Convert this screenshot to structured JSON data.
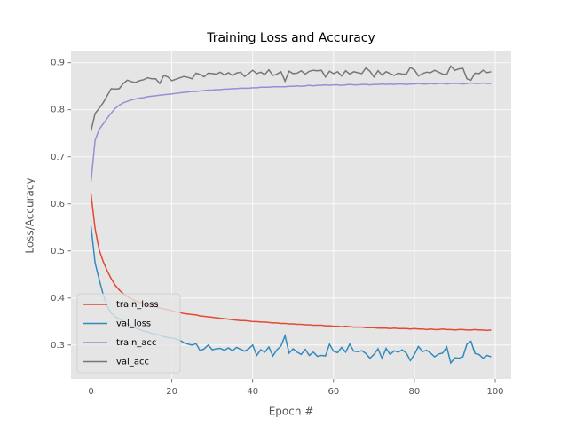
{
  "chart_data": {
    "type": "line",
    "title": "Training Loss and Accuracy",
    "xlabel": "Epoch #",
    "ylabel": "Loss/Accuracy",
    "x": [
      0,
      1,
      2,
      3,
      4,
      5,
      6,
      7,
      8,
      9,
      10,
      11,
      12,
      13,
      14,
      15,
      16,
      17,
      18,
      19,
      20,
      21,
      22,
      23,
      24,
      25,
      26,
      27,
      28,
      29,
      30,
      31,
      32,
      33,
      34,
      35,
      36,
      37,
      38,
      39,
      40,
      41,
      42,
      43,
      44,
      45,
      46,
      47,
      48,
      49,
      50,
      51,
      52,
      53,
      54,
      55,
      56,
      57,
      58,
      59,
      60,
      61,
      62,
      63,
      64,
      65,
      66,
      67,
      68,
      69,
      70,
      71,
      72,
      73,
      74,
      75,
      76,
      77,
      78,
      79,
      80,
      81,
      82,
      83,
      84,
      85,
      86,
      87,
      88,
      89,
      90,
      91,
      92,
      93,
      94,
      95,
      96,
      97,
      98,
      99
    ],
    "series": [
      {
        "name": "train_loss",
        "color": "#E24A33",
        "values": [
          0.621,
          0.548,
          0.503,
          0.478,
          0.458,
          0.441,
          0.427,
          0.417,
          0.409,
          0.403,
          0.398,
          0.394,
          0.391,
          0.388,
          0.385,
          0.383,
          0.381,
          0.379,
          0.377,
          0.375,
          0.373,
          0.371,
          0.369,
          0.367,
          0.366,
          0.365,
          0.364,
          0.362,
          0.361,
          0.36,
          0.359,
          0.358,
          0.357,
          0.356,
          0.355,
          0.354,
          0.353,
          0.352,
          0.352,
          0.351,
          0.35,
          0.35,
          0.349,
          0.349,
          0.348,
          0.347,
          0.347,
          0.346,
          0.346,
          0.345,
          0.345,
          0.344,
          0.344,
          0.343,
          0.343,
          0.342,
          0.342,
          0.342,
          0.341,
          0.341,
          0.34,
          0.34,
          0.339,
          0.34,
          0.339,
          0.338,
          0.338,
          0.338,
          0.337,
          0.337,
          0.337,
          0.336,
          0.336,
          0.336,
          0.335,
          0.336,
          0.335,
          0.335,
          0.335,
          0.334,
          0.335,
          0.334,
          0.334,
          0.333,
          0.334,
          0.333,
          0.333,
          0.334,
          0.333,
          0.333,
          0.332,
          0.333,
          0.333,
          0.332,
          0.332,
          0.333,
          0.332,
          0.332,
          0.331,
          0.332
        ]
      },
      {
        "name": "val_loss",
        "color": "#348ABD",
        "values": [
          0.553,
          0.475,
          0.44,
          0.408,
          0.383,
          0.368,
          0.36,
          0.356,
          0.35,
          0.345,
          0.34,
          0.336,
          0.333,
          0.33,
          0.328,
          0.325,
          0.323,
          0.321,
          0.318,
          0.316,
          0.315,
          0.313,
          0.31,
          0.305,
          0.302,
          0.3,
          0.303,
          0.288,
          0.292,
          0.3,
          0.29,
          0.292,
          0.293,
          0.289,
          0.294,
          0.288,
          0.295,
          0.291,
          0.287,
          0.292,
          0.3,
          0.278,
          0.29,
          0.285,
          0.296,
          0.277,
          0.29,
          0.298,
          0.32,
          0.283,
          0.292,
          0.285,
          0.28,
          0.291,
          0.278,
          0.285,
          0.276,
          0.278,
          0.277,
          0.302,
          0.287,
          0.284,
          0.295,
          0.285,
          0.302,
          0.287,
          0.286,
          0.288,
          0.282,
          0.272,
          0.28,
          0.292,
          0.272,
          0.293,
          0.28,
          0.288,
          0.285,
          0.29,
          0.283,
          0.267,
          0.28,
          0.297,
          0.286,
          0.289,
          0.283,
          0.275,
          0.281,
          0.283,
          0.296,
          0.262,
          0.273,
          0.272,
          0.275,
          0.302,
          0.308,
          0.282,
          0.28,
          0.272,
          0.278,
          0.275
        ]
      },
      {
        "name": "train_acc",
        "color": "#988ED5",
        "values": [
          0.647,
          0.735,
          0.758,
          0.77,
          0.782,
          0.793,
          0.803,
          0.81,
          0.815,
          0.818,
          0.821,
          0.823,
          0.825,
          0.826,
          0.828,
          0.829,
          0.83,
          0.831,
          0.832,
          0.833,
          0.834,
          0.835,
          0.836,
          0.837,
          0.838,
          0.839,
          0.839,
          0.84,
          0.841,
          0.842,
          0.842,
          0.843,
          0.843,
          0.844,
          0.844,
          0.845,
          0.845,
          0.846,
          0.846,
          0.846,
          0.847,
          0.847,
          0.848,
          0.848,
          0.848,
          0.849,
          0.849,
          0.849,
          0.849,
          0.85,
          0.85,
          0.851,
          0.85,
          0.851,
          0.852,
          0.851,
          0.852,
          0.852,
          0.853,
          0.852,
          0.853,
          0.853,
          0.852,
          0.853,
          0.854,
          0.853,
          0.853,
          0.854,
          0.854,
          0.853,
          0.854,
          0.854,
          0.855,
          0.854,
          0.855,
          0.854,
          0.855,
          0.855,
          0.854,
          0.855,
          0.855,
          0.856,
          0.855,
          0.855,
          0.856,
          0.855,
          0.856,
          0.856,
          0.855,
          0.856,
          0.856,
          0.856,
          0.855,
          0.856,
          0.857,
          0.856,
          0.856,
          0.857,
          0.856,
          0.856
        ]
      },
      {
        "name": "val_acc",
        "color": "#777777",
        "values": [
          0.755,
          0.792,
          0.803,
          0.815,
          0.83,
          0.845,
          0.844,
          0.845,
          0.856,
          0.863,
          0.86,
          0.858,
          0.862,
          0.864,
          0.868,
          0.866,
          0.866,
          0.856,
          0.873,
          0.87,
          0.862,
          0.865,
          0.868,
          0.871,
          0.869,
          0.866,
          0.878,
          0.875,
          0.87,
          0.878,
          0.877,
          0.876,
          0.88,
          0.874,
          0.879,
          0.873,
          0.878,
          0.88,
          0.871,
          0.877,
          0.884,
          0.877,
          0.88,
          0.875,
          0.885,
          0.873,
          0.876,
          0.881,
          0.861,
          0.882,
          0.877,
          0.878,
          0.883,
          0.876,
          0.882,
          0.884,
          0.883,
          0.884,
          0.87,
          0.882,
          0.877,
          0.881,
          0.872,
          0.883,
          0.876,
          0.881,
          0.879,
          0.877,
          0.889,
          0.882,
          0.87,
          0.883,
          0.874,
          0.881,
          0.877,
          0.873,
          0.878,
          0.876,
          0.876,
          0.89,
          0.885,
          0.872,
          0.877,
          0.88,
          0.879,
          0.884,
          0.88,
          0.876,
          0.875,
          0.893,
          0.884,
          0.887,
          0.888,
          0.866,
          0.863,
          0.878,
          0.877,
          0.884,
          0.879,
          0.881
        ]
      }
    ],
    "xlim": [
      -4.95,
      103.95
    ],
    "xticks": [
      0,
      20,
      40,
      60,
      80,
      100
    ],
    "ylim": [
      0.228,
      0.924
    ],
    "yticks": [
      0.3,
      0.4,
      0.5,
      0.6,
      0.7,
      0.8,
      0.9
    ],
    "grid": true,
    "legend": "lower left"
  }
}
